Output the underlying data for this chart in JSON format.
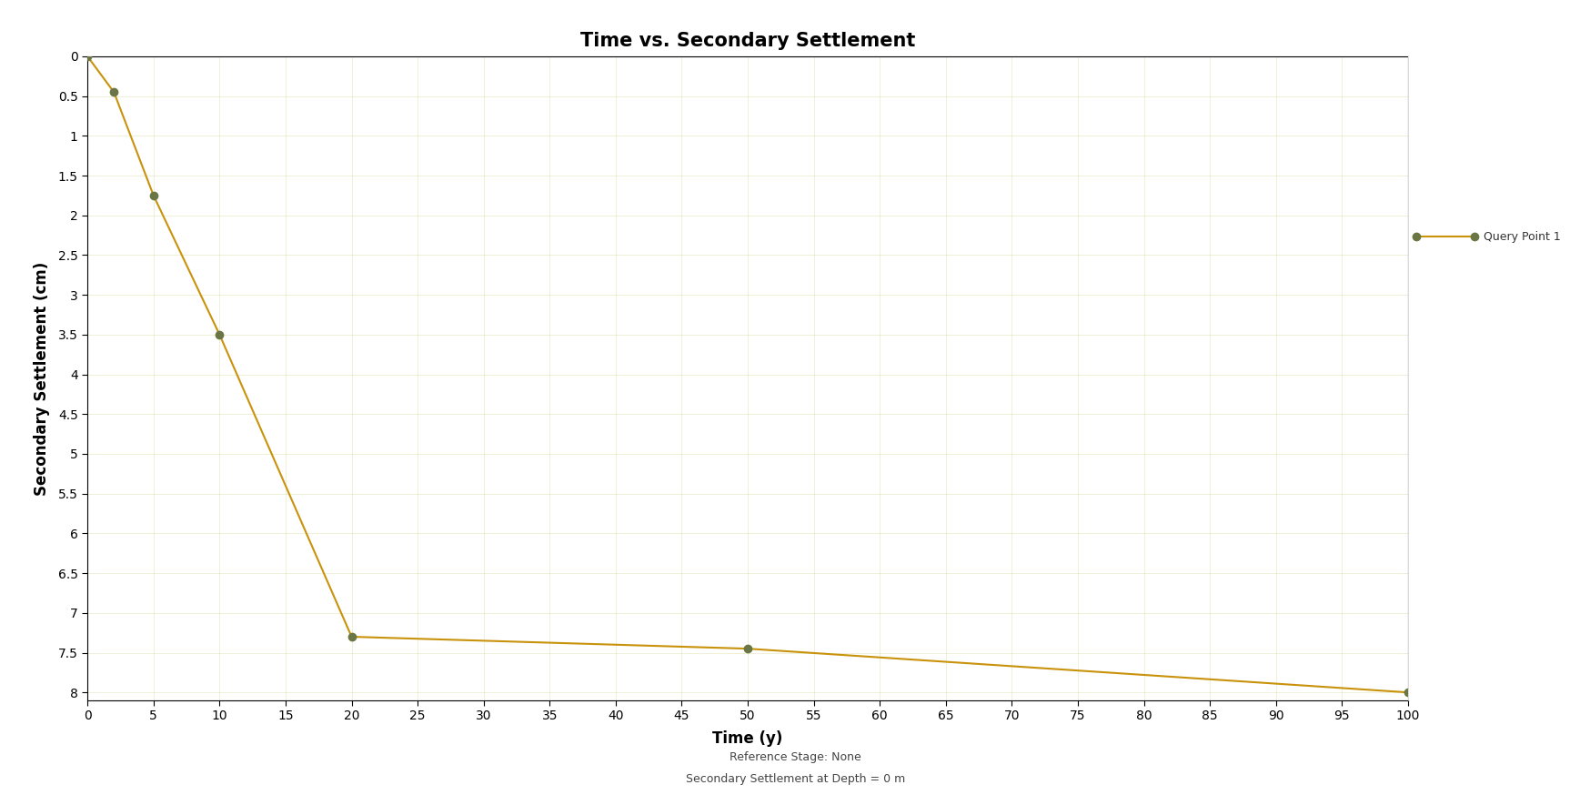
{
  "title": "Time vs. Secondary Settlement",
  "xlabel": "Time (y)",
  "ylabel": "Secondary Settlement (cm)",
  "footer_line1": "Reference Stage: None",
  "footer_line2": "Secondary Settlement at Depth = 0 m",
  "legend_label": "Query Point 1",
  "x_data": [
    0,
    2,
    5,
    10,
    20,
    50,
    100
  ],
  "y_data": [
    0.0,
    0.45,
    1.75,
    3.5,
    7.3,
    7.45,
    8.0
  ],
  "line_color": "#C8920A",
  "marker_color": "#6B7645",
  "marker_size": 6,
  "line_width": 1.5,
  "xlim": [
    0,
    100
  ],
  "ylim_min": 0,
  "ylim_max": 8.1,
  "x_ticks": [
    0,
    5,
    10,
    15,
    20,
    25,
    30,
    35,
    40,
    45,
    50,
    55,
    60,
    65,
    70,
    75,
    80,
    85,
    90,
    95,
    100
  ],
  "y_ticks": [
    0,
    0.5,
    1.0,
    1.5,
    2.0,
    2.5,
    3.0,
    3.5,
    4.0,
    4.5,
    5.0,
    5.5,
    6.0,
    6.5,
    7.0,
    7.5,
    8.0
  ],
  "plot_bg_color": "#ffffff",
  "fig_bg_color": "#ffffff",
  "grid_color": "#d8dda0",
  "grid_alpha": 0.5,
  "title_fontsize": 15,
  "axis_label_fontsize": 12,
  "tick_fontsize": 10,
  "legend_fontsize": 9,
  "footer_fontsize": 9,
  "right_panel_color": "#f8f8f8"
}
